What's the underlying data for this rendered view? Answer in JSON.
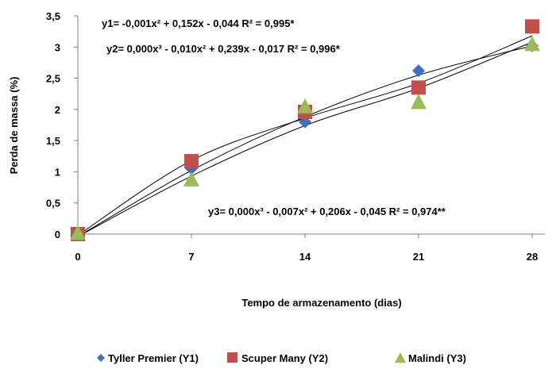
{
  "chart_data": {
    "type": "scatter",
    "x": [
      0,
      7,
      14,
      21,
      28
    ],
    "xlabel": "Tempo de armazenamento (dias)",
    "ylabel": "Perda de massa (%)",
    "ylim": [
      0,
      3.5
    ],
    "yticks": [
      "0",
      "0,5",
      "1",
      "1,5",
      "2",
      "2,5",
      "3",
      "3,5"
    ],
    "xticks": [
      "0",
      "7",
      "14",
      "21",
      "28"
    ],
    "grid": false,
    "legend_position": "bottom",
    "series": [
      {
        "name": "Tyller Premier (Y1)",
        "marker": "diamond",
        "color": "#3f6fbf",
        "values": [
          0,
          1.05,
          1.8,
          2.62,
          3.02
        ]
      },
      {
        "name": "Scuper Many (Y2)",
        "marker": "square",
        "color": "#c0504d",
        "values": [
          0,
          1.17,
          1.96,
          2.35,
          3.33
        ]
      },
      {
        "name": "Malindi (Y3)",
        "marker": "triangle",
        "color": "#9bbb59",
        "values": [
          0.02,
          0.88,
          2.05,
          2.12,
          3.05
        ]
      }
    ],
    "annotations": [
      "y1= -0,001x² + 0,152x - 0,044  R² = 0,995*",
      "y2= 0,000x³ - 0,010x² + 0,239x - 0,017  R² = 0,996*",
      "y3= 0,000x³ - 0,007x² + 0,206x - 0,045  R² = 0,974**"
    ]
  }
}
